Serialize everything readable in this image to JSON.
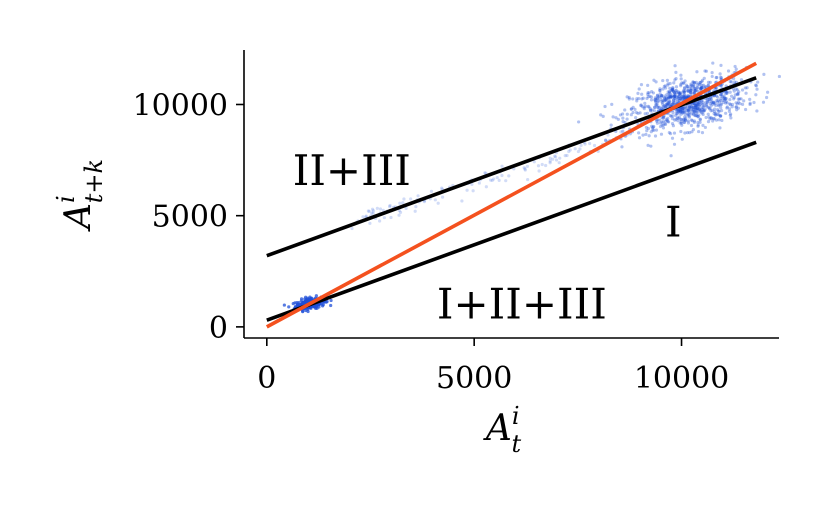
{
  "chart_data": {
    "type": "scatter",
    "xlabel": "A",
    "xlabel_sup": "i",
    "xlabel_sub": "t",
    "ylabel": "A",
    "ylabel_sup": "i",
    "ylabel_sub": "t+k",
    "xlim": [
      -550,
      12350
    ],
    "ylim": [
      -500,
      12450
    ],
    "xticks": [
      0,
      5000,
      10000
    ],
    "yticks": [
      0,
      5000,
      10000
    ],
    "grid": false,
    "colors": {
      "points": "#1f4fd8",
      "fit_all": "#f4511e",
      "fit_group": "#000000",
      "axes": "#000000"
    },
    "clusters": [
      {
        "name": "low",
        "cx": 1050,
        "cy": 1050,
        "sx": 180,
        "sy": 130,
        "n": 260,
        "opacity": 0.75
      },
      {
        "name": "transition",
        "x0": 2000,
        "x1": 8800,
        "slope": 0.6,
        "intercept": 3450,
        "jitter": 180,
        "n": 140,
        "opacity": 0.2
      },
      {
        "name": "high",
        "cx": 10150,
        "cy": 10050,
        "sx": 700,
        "sy": 550,
        "n": 950,
        "opacity": 0.35
      }
    ],
    "lines": [
      {
        "label": "II+III",
        "x": [
          0,
          11800
        ],
        "y": [
          3200,
          11200
        ],
        "color": "#000000"
      },
      {
        "label": "I",
        "x": [
          0,
          11800
        ],
        "y": [
          300,
          8300
        ],
        "color": "#000000"
      },
      {
        "label": "I+II+III",
        "x": [
          0,
          11800
        ],
        "y": [
          0,
          11850
        ],
        "color": "#f4511e"
      }
    ],
    "annotations": [
      {
        "text": "II+III",
        "x": 2050,
        "y": 7000,
        "color": "#000000"
      },
      {
        "text": "I",
        "x": 9800,
        "y": 4700,
        "color": "#000000"
      },
      {
        "text": "I+II+III",
        "x": 6150,
        "y": 1000,
        "color": "#f4511e"
      }
    ]
  }
}
